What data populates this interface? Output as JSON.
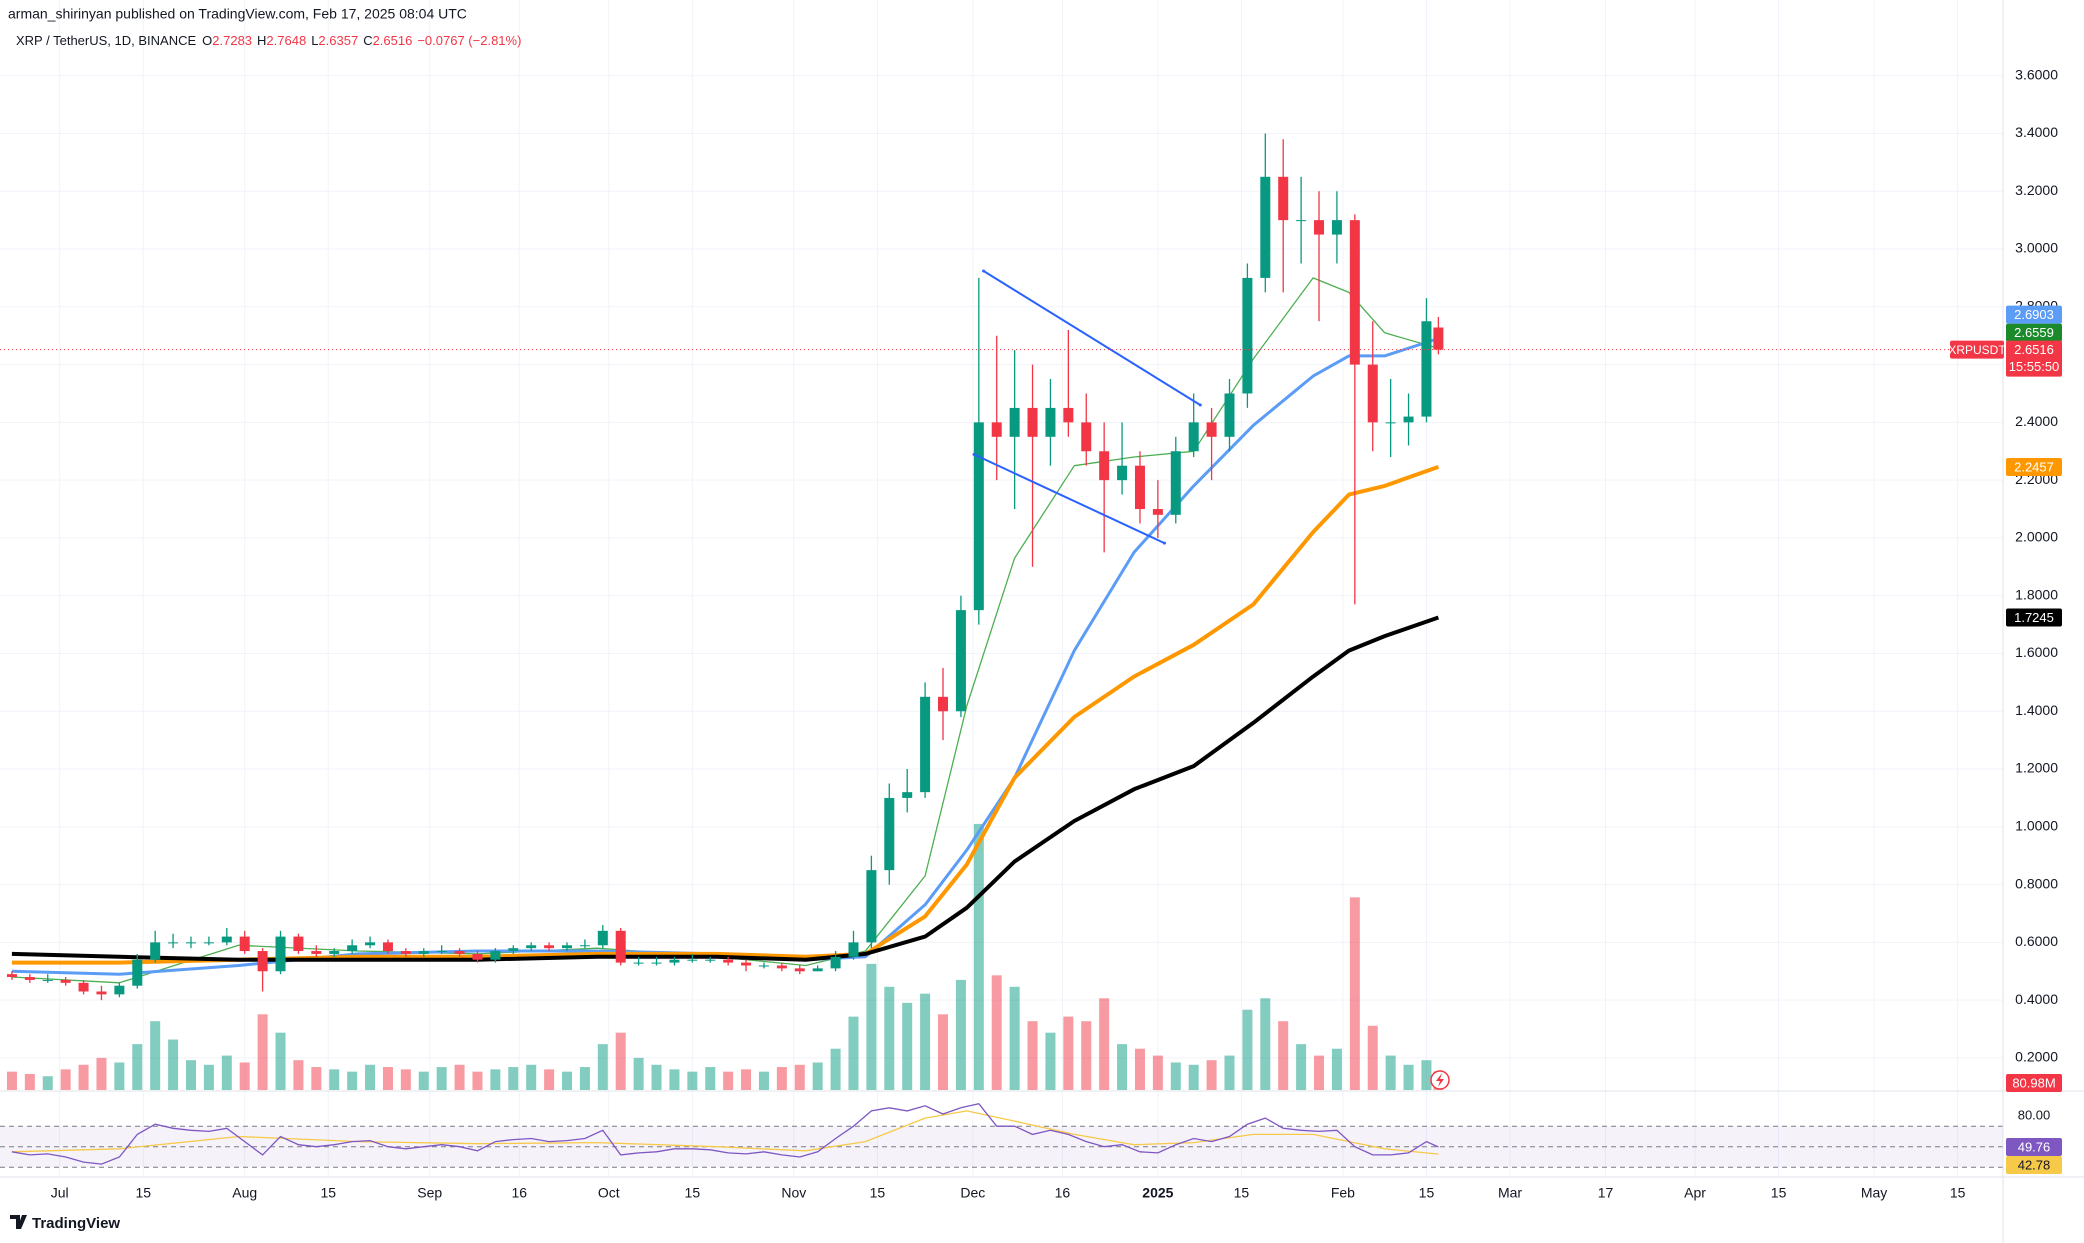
{
  "chart_data": {
    "type": "candlestick",
    "published": "arman_shirinyan published on TradingView.com, Feb 17, 2025 08:04 UTC",
    "symbol_title": "XRP / TetherUS, 1D, BINANCE",
    "ohlc_letters": [
      "O",
      "H",
      "L",
      "C"
    ],
    "change": "−0.0767 (−2.81%)",
    "symbol_tag": "XRPUSDT",
    "countdown": "15:55:50",
    "footer_logo": "TradingView",
    "up_color": "#089981",
    "down_color": "#f23645",
    "xlim": [
      -10,
      325.6
    ],
    "ylim": [
      0.089,
      3.862
    ],
    "yticks": [
      {
        "value": 0.2,
        "label": "0.2000"
      },
      {
        "value": 0.4,
        "label": "0.4000"
      },
      {
        "value": 0.6,
        "label": "0.6000"
      },
      {
        "value": 0.8,
        "label": "0.8000"
      },
      {
        "value": 1,
        "label": "1.0000"
      },
      {
        "value": 1.2,
        "label": "1.2000"
      },
      {
        "value": 1.4,
        "label": "1.4000"
      },
      {
        "value": 1.6,
        "label": "1.6000"
      },
      {
        "value": 1.8,
        "label": "1.8000"
      },
      {
        "value": 2,
        "label": "2.0000"
      },
      {
        "value": 2.2,
        "label": "2.2000"
      },
      {
        "value": 2.4,
        "label": "2.4000"
      },
      {
        "value": 2.6,
        "label": "2.6000"
      },
      {
        "value": 2.8,
        "label": "2.8000"
      },
      {
        "value": 3,
        "label": "3.0000"
      },
      {
        "value": 3.2,
        "label": "3.2000"
      },
      {
        "value": 3.4,
        "label": "3.4000"
      },
      {
        "value": 3.6,
        "label": "3.6000"
      }
    ],
    "xticks": [
      {
        "value": 0,
        "label": "Jul"
      },
      {
        "value": 14,
        "label": "15"
      },
      {
        "value": 31,
        "label": "Aug"
      },
      {
        "value": 45,
        "label": "15"
      },
      {
        "value": 62,
        "label": "Sep"
      },
      {
        "value": 77,
        "label": "16"
      },
      {
        "value": 92,
        "label": "Oct"
      },
      {
        "value": 106,
        "label": "15"
      },
      {
        "value": 123,
        "label": "Nov"
      },
      {
        "value": 137,
        "label": "15"
      },
      {
        "value": 153,
        "label": "Dec"
      },
      {
        "value": 168,
        "label": "16"
      },
      {
        "value": 184,
        "label": "2025"
      },
      {
        "value": 198,
        "label": "15"
      },
      {
        "value": 215,
        "label": "Feb"
      },
      {
        "value": 229,
        "label": "15"
      },
      {
        "value": 243,
        "label": "Mar"
      },
      {
        "value": 259,
        "label": "17"
      },
      {
        "value": 274,
        "label": "Apr"
      },
      {
        "value": 288,
        "label": "15"
      },
      {
        "value": 304,
        "label": "May"
      },
      {
        "value": 318,
        "label": "15"
      }
    ],
    "x": [
      -8,
      -5,
      -2,
      1,
      4,
      7,
      10,
      13,
      16,
      19,
      22,
      25,
      28,
      31,
      34,
      37,
      40,
      43,
      46,
      49,
      52,
      55,
      58,
      61,
      64,
      67,
      70,
      73,
      76,
      79,
      82,
      85,
      88,
      91,
      94,
      97,
      100,
      103,
      106,
      109,
      112,
      115,
      118,
      121,
      124,
      127,
      130,
      133,
      136,
      139,
      142,
      145,
      148,
      151,
      154,
      157,
      160,
      163,
      166,
      169,
      172,
      175,
      178,
      181,
      184,
      187,
      190,
      193,
      196,
      199,
      202,
      205,
      208,
      211,
      214,
      217,
      220,
      223,
      226,
      229,
      231
    ],
    "candles": [
      [
        0.49,
        0.5,
        0.47,
        0.48
      ],
      [
        0.48,
        0.49,
        0.46,
        0.47
      ],
      [
        0.47,
        0.49,
        0.46,
        0.47
      ],
      [
        0.47,
        0.48,
        0.45,
        0.46
      ],
      [
        0.46,
        0.47,
        0.42,
        0.43
      ],
      [
        0.43,
        0.45,
        0.4,
        0.42
      ],
      [
        0.42,
        0.46,
        0.41,
        0.45
      ],
      [
        0.45,
        0.56,
        0.44,
        0.54
      ],
      [
        0.54,
        0.64,
        0.53,
        0.6
      ],
      [
        0.6,
        0.63,
        0.58,
        0.6
      ],
      [
        0.6,
        0.62,
        0.58,
        0.6
      ],
      [
        0.6,
        0.62,
        0.59,
        0.6
      ],
      [
        0.6,
        0.65,
        0.59,
        0.62
      ],
      [
        0.62,
        0.64,
        0.56,
        0.57
      ],
      [
        0.57,
        0.58,
        0.43,
        0.5
      ],
      [
        0.5,
        0.64,
        0.49,
        0.62
      ],
      [
        0.62,
        0.63,
        0.56,
        0.57
      ],
      [
        0.57,
        0.59,
        0.55,
        0.56
      ],
      [
        0.56,
        0.58,
        0.55,
        0.57
      ],
      [
        0.57,
        0.61,
        0.56,
        0.59
      ],
      [
        0.59,
        0.62,
        0.58,
        0.6
      ],
      [
        0.6,
        0.61,
        0.56,
        0.57
      ],
      [
        0.57,
        0.58,
        0.55,
        0.56
      ],
      [
        0.56,
        0.58,
        0.55,
        0.57
      ],
      [
        0.57,
        0.59,
        0.56,
        0.57
      ],
      [
        0.57,
        0.58,
        0.55,
        0.56
      ],
      [
        0.56,
        0.57,
        0.53,
        0.54
      ],
      [
        0.54,
        0.58,
        0.53,
        0.57
      ],
      [
        0.57,
        0.59,
        0.56,
        0.58
      ],
      [
        0.58,
        0.6,
        0.57,
        0.59
      ],
      [
        0.59,
        0.6,
        0.57,
        0.58
      ],
      [
        0.58,
        0.6,
        0.57,
        0.59
      ],
      [
        0.59,
        0.61,
        0.58,
        0.59
      ],
      [
        0.59,
        0.66,
        0.58,
        0.64
      ],
      [
        0.64,
        0.65,
        0.52,
        0.53
      ],
      [
        0.53,
        0.55,
        0.52,
        0.53
      ],
      [
        0.53,
        0.55,
        0.52,
        0.53
      ],
      [
        0.53,
        0.55,
        0.52,
        0.54
      ],
      [
        0.54,
        0.56,
        0.53,
        0.54
      ],
      [
        0.54,
        0.55,
        0.53,
        0.54
      ],
      [
        0.54,
        0.55,
        0.52,
        0.53
      ],
      [
        0.53,
        0.54,
        0.5,
        0.52
      ],
      [
        0.52,
        0.53,
        0.51,
        0.52
      ],
      [
        0.52,
        0.53,
        0.5,
        0.51
      ],
      [
        0.51,
        0.52,
        0.49,
        0.5
      ],
      [
        0.5,
        0.52,
        0.5,
        0.51
      ],
      [
        0.51,
        0.57,
        0.5,
        0.55
      ],
      [
        0.55,
        0.64,
        0.54,
        0.6
      ],
      [
        0.6,
        0.9,
        0.58,
        0.85
      ],
      [
        0.85,
        1.15,
        0.8,
        1.1
      ],
      [
        1.1,
        1.2,
        1.05,
        1.12
      ],
      [
        1.12,
        1.5,
        1.1,
        1.45
      ],
      [
        1.45,
        1.55,
        1.3,
        1.4
      ],
      [
        1.4,
        1.8,
        1.38,
        1.75
      ],
      [
        1.75,
        2.9,
        1.7,
        2.4
      ],
      [
        2.4,
        2.7,
        2.2,
        2.35
      ],
      [
        2.35,
        2.65,
        2.1,
        2.45
      ],
      [
        2.45,
        2.6,
        1.9,
        2.35
      ],
      [
        2.35,
        2.55,
        2.25,
        2.45
      ],
      [
        2.45,
        2.72,
        2.35,
        2.4
      ],
      [
        2.4,
        2.5,
        2.25,
        2.3
      ],
      [
        2.3,
        2.4,
        1.95,
        2.2
      ],
      [
        2.2,
        2.4,
        2.15,
        2.25
      ],
      [
        2.25,
        2.3,
        2.05,
        2.1
      ],
      [
        2.1,
        2.2,
        2.0,
        2.08
      ],
      [
        2.08,
        2.35,
        2.05,
        2.3
      ],
      [
        2.3,
        2.5,
        2.28,
        2.4
      ],
      [
        2.4,
        2.45,
        2.2,
        2.35
      ],
      [
        2.35,
        2.55,
        2.3,
        2.5
      ],
      [
        2.5,
        2.95,
        2.45,
        2.9
      ],
      [
        2.9,
        3.4,
        2.85,
        3.25
      ],
      [
        3.25,
        3.38,
        2.85,
        3.1
      ],
      [
        3.1,
        3.25,
        2.95,
        3.1
      ],
      [
        3.1,
        3.2,
        2.75,
        3.05
      ],
      [
        3.05,
        3.2,
        2.95,
        3.1
      ],
      [
        3.1,
        3.12,
        1.77,
        2.6
      ],
      [
        2.6,
        2.75,
        2.3,
        2.4
      ],
      [
        2.4,
        2.55,
        2.28,
        2.4
      ],
      [
        2.4,
        2.5,
        2.32,
        2.42
      ],
      [
        2.42,
        2.83,
        2.4,
        2.75
      ],
      [
        2.7283,
        2.7648,
        2.6357,
        2.6516
      ]
    ],
    "volume": {
      "values": [
        80,
        70,
        60,
        90,
        110,
        140,
        120,
        200,
        300,
        220,
        130,
        110,
        150,
        120,
        330,
        250,
        130,
        100,
        90,
        80,
        110,
        100,
        90,
        80,
        100,
        110,
        80,
        90,
        100,
        110,
        90,
        80,
        100,
        200,
        250,
        140,
        110,
        90,
        80,
        100,
        80,
        90,
        80,
        100,
        110,
        120,
        180,
        320,
        550,
        450,
        380,
        420,
        330,
        480,
        1160,
        500,
        450,
        300,
        250,
        320,
        300,
        400,
        200,
        180,
        150,
        120,
        110,
        130,
        150,
        350,
        400,
        300,
        200,
        150,
        180,
        840,
        280,
        150,
        110,
        130,
        80.98
      ],
      "last_label": "80.98M"
    },
    "ma_x": [
      -8,
      10,
      30,
      50,
      70,
      90,
      110,
      125,
      135,
      145,
      152,
      160,
      170,
      180,
      190,
      200,
      210,
      216,
      222,
      231
    ],
    "moving_averages": [
      {
        "color": "#4caf50",
        "width": 1.3,
        "values": [
          0.48,
          0.46,
          0.59,
          0.57,
          0.56,
          0.58,
          0.55,
          0.52,
          0.57,
          0.83,
          1.42,
          1.93,
          2.25,
          2.28,
          2.3,
          2.62,
          2.9,
          2.85,
          2.71,
          2.6559
        ]
      },
      {
        "color": "#5b9cf6",
        "width": 3,
        "values": [
          0.5,
          0.49,
          0.52,
          0.56,
          0.57,
          0.57,
          0.56,
          0.54,
          0.55,
          0.73,
          0.92,
          1.17,
          1.61,
          1.95,
          2.18,
          2.39,
          2.56,
          2.63,
          2.63,
          2.6903
        ]
      },
      {
        "color": "#ff9800",
        "width": 4,
        "values": [
          0.53,
          0.53,
          0.54,
          0.55,
          0.55,
          0.56,
          0.56,
          0.55,
          0.56,
          0.69,
          0.87,
          1.17,
          1.38,
          1.52,
          1.63,
          1.77,
          2.02,
          2.15,
          2.18,
          2.2457
        ]
      },
      {
        "color": "#000000",
        "width": 4,
        "values": [
          0.56,
          0.55,
          0.54,
          0.54,
          0.54,
          0.55,
          0.55,
          0.54,
          0.56,
          0.62,
          0.72,
          0.88,
          1.02,
          1.13,
          1.21,
          1.36,
          1.52,
          1.61,
          1.66,
          1.7245
        ]
      }
    ],
    "trendlines": {
      "color": "#2962ff",
      "lines": [
        {
          "x": [
            154.8,
            191.1
          ],
          "y": [
            2.924,
            2.46
          ]
        },
        {
          "x": [
            153.2,
            185.1
          ],
          "y": [
            2.289,
            1.982
          ]
        }
      ]
    },
    "rsi": {
      "color": "#7e57c2",
      "values": [
        45,
        42,
        43,
        40,
        35,
        33,
        40,
        62,
        72,
        68,
        66,
        65,
        68,
        55,
        42,
        60,
        52,
        50,
        52,
        55,
        56,
        50,
        48,
        50,
        52,
        50,
        46,
        55,
        57,
        58,
        55,
        56,
        58,
        66,
        42,
        44,
        45,
        48,
        48,
        47,
        44,
        43,
        45,
        42,
        40,
        45,
        58,
        70,
        85,
        88,
        85,
        90,
        82,
        88,
        92,
        70,
        70,
        62,
        66,
        62,
        55,
        50,
        52,
        45,
        44,
        52,
        58,
        55,
        60,
        72,
        78,
        68,
        66,
        65,
        66,
        50,
        42,
        42,
        44,
        55,
        49.76
      ]
    },
    "rsi_signal": {
      "color": "#f7c948",
      "values": [
        45,
        48,
        60,
        55,
        53,
        54,
        50,
        46,
        55,
        78,
        85,
        75,
        62,
        52,
        54,
        62,
        62,
        55,
        48,
        42.78
      ]
    },
    "rsi_ylim": [
      21.4,
      101.5
    ],
    "rsi_levels": [
      70,
      50,
      30
    ],
    "rsi_yticks": [
      {
        "value": 80,
        "label": "80.00"
      }
    ]
  }
}
